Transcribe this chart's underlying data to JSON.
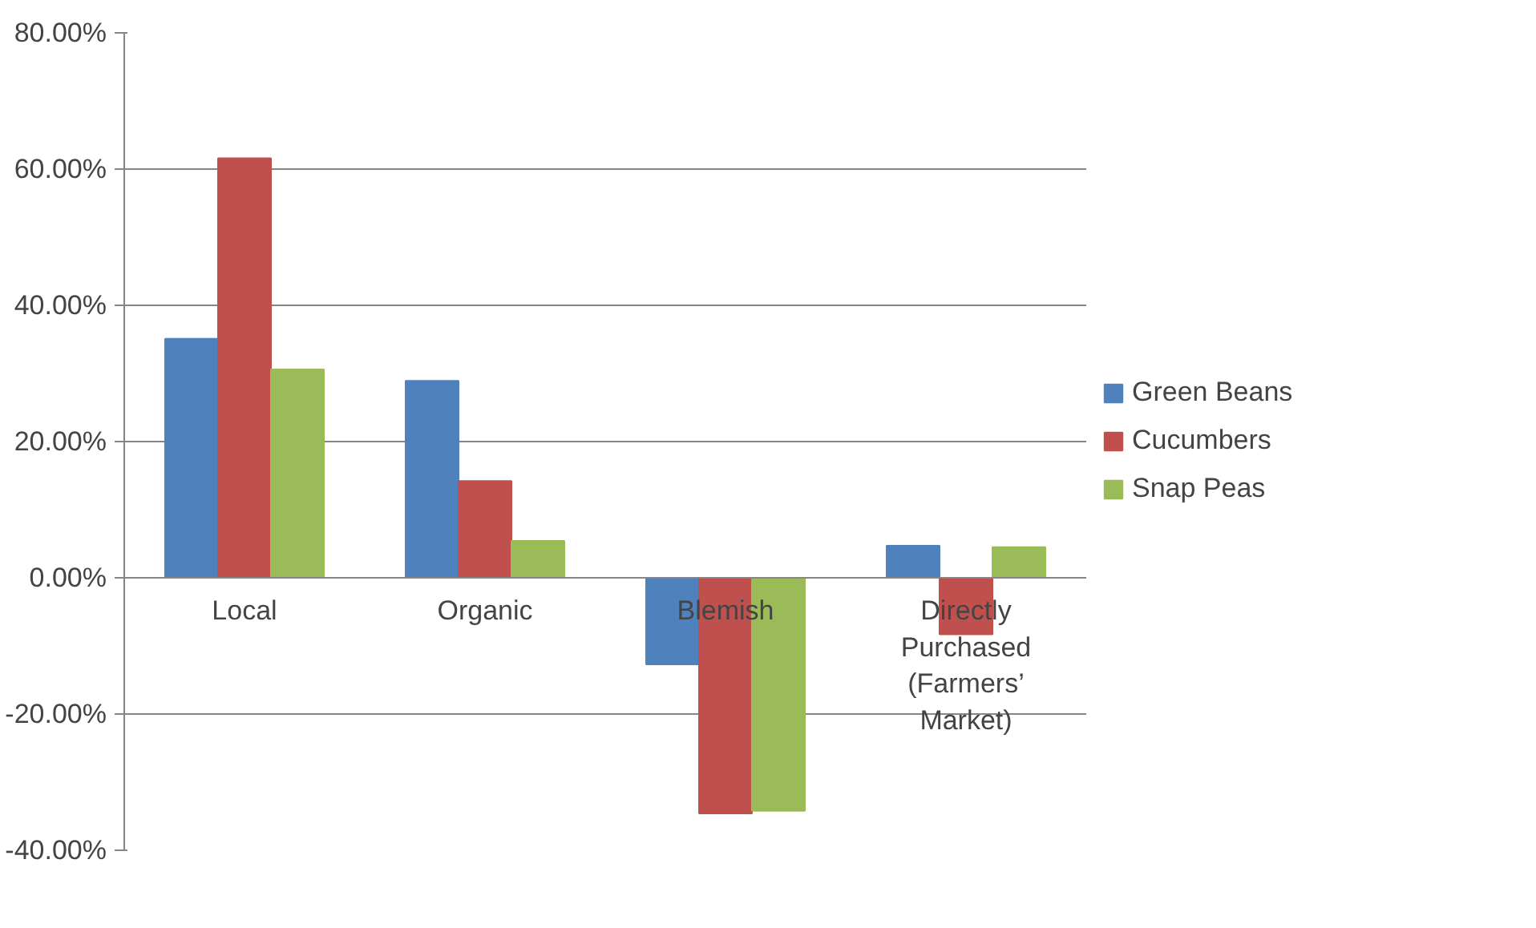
{
  "chart_data": {
    "type": "bar",
    "categories": [
      "Local",
      "Organic",
      "Blemish",
      "Directly Purchased (Farmers’ Market)"
    ],
    "series": [
      {
        "name": "Green Beans",
        "color": "#4f81bd",
        "values": [
          35.1,
          28.9,
          -12.7,
          4.7
        ]
      },
      {
        "name": "Cucumbers",
        "color": "#c0504d",
        "values": [
          61.6,
          14.2,
          -34.6,
          -8.3
        ]
      },
      {
        "name": "Snap Peas",
        "color": "#9bbb59",
        "values": [
          30.6,
          5.4,
          -34.2,
          4.5
        ]
      }
    ],
    "ylim": [
      -40,
      80
    ],
    "yticks": [
      {
        "value": -40,
        "label": "-40.00%"
      },
      {
        "value": -20,
        "label": "-20.00%"
      },
      {
        "value": 0,
        "label": "0.00%"
      },
      {
        "value": 20,
        "label": "20.00%"
      },
      {
        "value": 40,
        "label": "40.00%"
      },
      {
        "value": 60,
        "label": "60.00%"
      },
      {
        "value": 80,
        "label": "80.00%"
      }
    ],
    "grid": "y",
    "legend": "right"
  }
}
